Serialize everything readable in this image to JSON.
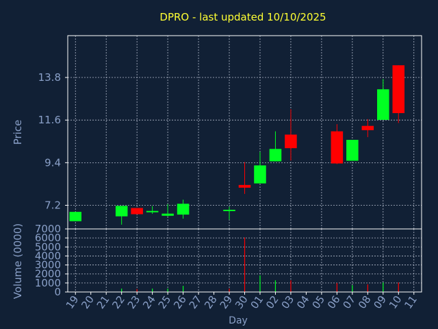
{
  "chart_data": {
    "type": "candlestick",
    "title": "DPRO - last updated 10/10/2025",
    "xlabel": "Day",
    "price_panel": {
      "ylabel": "Price",
      "yticks": [
        "7.2",
        "9.4",
        "11.6",
        "13.8"
      ],
      "ylim": [
        5.98,
        15.96
      ]
    },
    "volume_panel": {
      "ylabel": "Volume (0000)",
      "yticks": [
        "0",
        "1000",
        "2000",
        "3000",
        "4000",
        "5000",
        "6000",
        "7000"
      ],
      "ylim": [
        0,
        7000
      ]
    },
    "x_tick_labels": [
      "19",
      "20",
      "21",
      "22",
      "23",
      "24",
      "25",
      "26",
      "27",
      "28",
      "29",
      "30",
      "01",
      "02",
      "03",
      "04",
      "05",
      "06",
      "07",
      "08",
      "09",
      "10",
      "11"
    ],
    "candles": [
      {
        "day": "19",
        "open": 6.38,
        "close": 6.86,
        "high": 6.86,
        "low": 6.38
      },
      {
        "day": "22",
        "open": 6.63,
        "close": 7.17,
        "high": 7.17,
        "low": 6.2
      },
      {
        "day": "23",
        "open": 7.06,
        "close": 6.74,
        "high": 7.06,
        "low": 6.74
      },
      {
        "day": "24",
        "open": 6.86,
        "close": 6.91,
        "high": 7.16,
        "low": 6.76
      },
      {
        "day": "25",
        "open": 6.66,
        "close": 6.77,
        "high": 7.26,
        "low": 6.62
      },
      {
        "day": "26",
        "open": 6.72,
        "close": 7.28,
        "high": 7.49,
        "low": 6.51
      },
      {
        "day": "29",
        "open": 6.96,
        "close": 6.97,
        "high": 7.13,
        "low": 6.46
      },
      {
        "day": "30",
        "open": 8.25,
        "close": 8.11,
        "high": 9.43,
        "low": 7.79
      },
      {
        "day": "01",
        "open": 8.33,
        "close": 9.26,
        "high": 9.96,
        "low": 8.33
      },
      {
        "day": "02",
        "open": 9.47,
        "close": 10.11,
        "high": 11.02,
        "low": 9.47
      },
      {
        "day": "03",
        "open": 10.85,
        "close": 10.15,
        "high": 12.16,
        "low": 9.51
      },
      {
        "day": "06",
        "open": 11.02,
        "close": 9.36,
        "high": 11.39,
        "low": 9.33
      },
      {
        "day": "07",
        "open": 9.5,
        "close": 10.58,
        "high": 10.58,
        "low": 9.5
      },
      {
        "day": "08",
        "open": 11.3,
        "close": 11.08,
        "high": 11.65,
        "low": 10.72
      },
      {
        "day": "09",
        "open": 11.61,
        "close": 13.19,
        "high": 13.72,
        "low": 11.61
      },
      {
        "day": "10",
        "open": 14.43,
        "close": 11.96,
        "high": 14.43,
        "low": 11.45
      }
    ],
    "volumes": [
      {
        "day": "22",
        "value": 380,
        "color": "green"
      },
      {
        "day": "23",
        "value": 330,
        "color": "red"
      },
      {
        "day": "24",
        "value": 380,
        "color": "green"
      },
      {
        "day": "25",
        "value": 380,
        "color": "green"
      },
      {
        "day": "26",
        "value": 680,
        "color": "green"
      },
      {
        "day": "29",
        "value": 380,
        "color": "red"
      },
      {
        "day": "30",
        "value": 6050,
        "color": "red"
      },
      {
        "day": "01",
        "value": 1850,
        "color": "green"
      },
      {
        "day": "02",
        "value": 1300,
        "color": "green"
      },
      {
        "day": "03",
        "value": 1300,
        "color": "red"
      },
      {
        "day": "06",
        "value": 1000,
        "color": "red"
      },
      {
        "day": "07",
        "value": 750,
        "color": "green"
      },
      {
        "day": "08",
        "value": 850,
        "color": "red"
      },
      {
        "day": "09",
        "value": 1050,
        "color": "green"
      },
      {
        "day": "10",
        "value": 1050,
        "color": "red"
      }
    ],
    "colors": {
      "background": "#112035",
      "up": "#00ff22",
      "down": "#ff0000",
      "title": "#ffff33",
      "axis_text": "#8aa0c8",
      "frame": "#ffffff"
    },
    "grid": true
  }
}
